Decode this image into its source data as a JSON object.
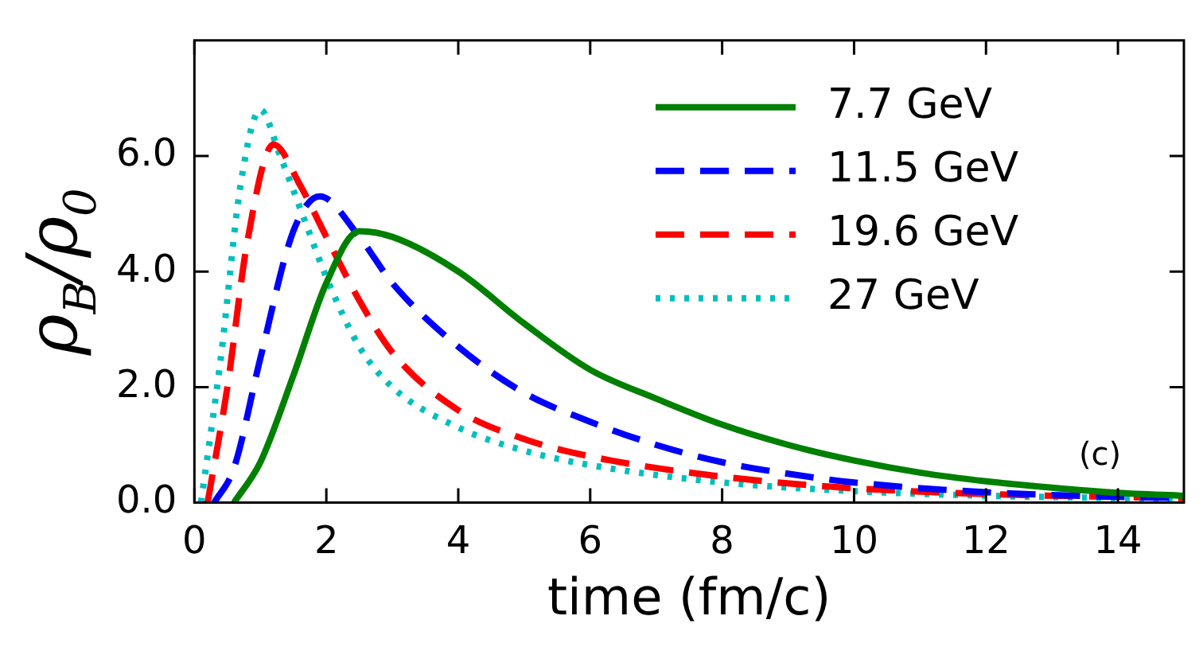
{
  "chart_data": {
    "type": "line",
    "xlabel": "time (fm/c)",
    "ylabel": "ρ$_{B}$/ρ$_{0}$",
    "annotations": [
      "(c)"
    ],
    "xlim": [
      0,
      15
    ],
    "xticks": [
      0,
      2,
      4,
      6,
      8,
      10,
      12,
      14
    ],
    "ylim": [
      0,
      8
    ],
    "yticks": [
      {
        "value": 0,
        "label": "0.0"
      },
      {
        "value": 2,
        "label": "2.0"
      },
      {
        "value": 4,
        "label": "4.0"
      },
      {
        "value": 6,
        "label": "6.0"
      }
    ],
    "grid": false,
    "legend": "top right",
    "marker": "none",
    "series": [
      {
        "name": "7.7 GeV",
        "color": "#008000",
        "line_style": "solid",
        "x": [
          0.6,
          1.0,
          1.5,
          2.0,
          2.5,
          3.0,
          4,
          5,
          6,
          7,
          8,
          9,
          10,
          11,
          12,
          13,
          14,
          15
        ],
        "values": [
          0,
          0.7,
          2.2,
          3.8,
          4.7,
          4.6,
          4.0,
          3.1,
          2.3,
          1.8,
          1.35,
          1.0,
          0.73,
          0.52,
          0.37,
          0.26,
          0.17,
          0.12
        ]
      },
      {
        "name": "11.5 GeV",
        "color": "#0000ff",
        "line_style": "dashed",
        "x": [
          0.3,
          0.6,
          1.0,
          1.5,
          1.9,
          2.5,
          3,
          4,
          5,
          6,
          7,
          8,
          9,
          10,
          12,
          14,
          15
        ],
        "values": [
          0,
          0.6,
          2.5,
          4.7,
          5.3,
          4.6,
          3.8,
          2.7,
          1.9,
          1.4,
          1.0,
          0.7,
          0.5,
          0.35,
          0.18,
          0.1,
          0.08
        ]
      },
      {
        "name": "19.6 GeV",
        "color": "#ff0000",
        "line_style": "dashed",
        "x": [
          0.2,
          0.5,
          0.8,
          1.2,
          1.6,
          2,
          2.5,
          3,
          4,
          5,
          6,
          8,
          10,
          12,
          15
        ],
        "values": [
          0,
          2.0,
          4.5,
          6.2,
          5.5,
          4.6,
          3.5,
          2.6,
          1.6,
          1.1,
          0.8,
          0.45,
          0.25,
          0.15,
          0.08
        ]
      },
      {
        "name": "27 GeV",
        "color": "#00bfbf",
        "line_style": "dotted",
        "x": [
          0.1,
          0.4,
          0.7,
          1.0,
          1.3,
          1.7,
          2.0,
          2.5,
          3,
          4,
          5,
          6,
          8,
          10,
          12,
          15
        ],
        "values": [
          0,
          2.5,
          5.5,
          6.8,
          6.0,
          4.8,
          3.9,
          2.7,
          2.0,
          1.3,
          0.9,
          0.65,
          0.35,
          0.2,
          0.12,
          0.06
        ]
      }
    ]
  }
}
